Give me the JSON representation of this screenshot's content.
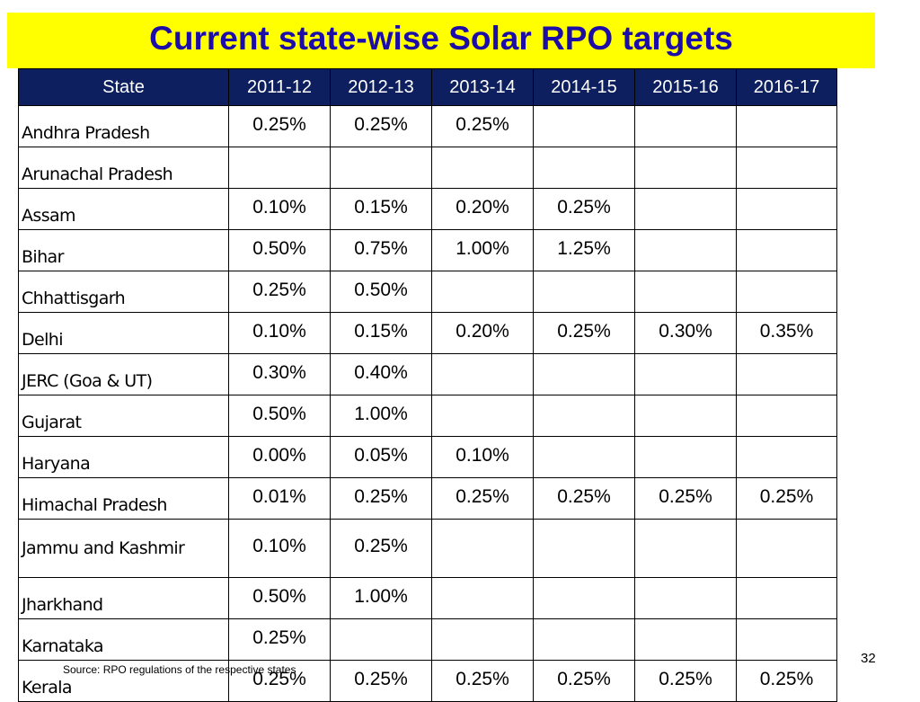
{
  "title": "Current state-wise Solar RPO targets",
  "table": {
    "headers": [
      "State",
      "2011-12",
      "2012-13",
      "2013-14",
      "2014-15",
      "2015-16",
      "2016-17"
    ],
    "rows": [
      {
        "state": "Andhra Pradesh",
        "values": [
          "0.25%",
          "0.25%",
          "0.25%",
          "",
          "",
          ""
        ]
      },
      {
        "state": "Arunachal Pradesh",
        "values": [
          "",
          "",
          "",
          "",
          "",
          ""
        ]
      },
      {
        "state": "Assam",
        "values": [
          "0.10%",
          "0.15%",
          "0.20%",
          "0.25%",
          "",
          ""
        ]
      },
      {
        "state": "Bihar",
        "values": [
          "0.50%",
          "0.75%",
          "1.00%",
          "1.25%",
          "",
          ""
        ]
      },
      {
        "state": "Chhattisgarh",
        "values": [
          "0.25%",
          "0.50%",
          "",
          "",
          "",
          ""
        ]
      },
      {
        "state": "Delhi",
        "values": [
          "0.10%",
          "0.15%",
          "0.20%",
          "0.25%",
          "0.30%",
          "0.35%"
        ]
      },
      {
        "state": "JERC (Goa & UT)",
        "values": [
          "0.30%",
          "0.40%",
          "",
          "",
          "",
          ""
        ]
      },
      {
        "state": "Gujarat",
        "values": [
          "0.50%",
          "1.00%",
          "",
          "",
          "",
          ""
        ]
      },
      {
        "state": "Haryana",
        "values": [
          "0.00%",
          "0.05%",
          "0.10%",
          "",
          "",
          ""
        ]
      },
      {
        "state": "Himachal Pradesh",
        "values": [
          "0.01%",
          "0.25%",
          "0.25%",
          "0.25%",
          "0.25%",
          "0.25%"
        ]
      },
      {
        "state": "Jammu and Kashmir",
        "values": [
          "0.10%",
          "0.25%",
          "",
          "",
          "",
          ""
        ]
      },
      {
        "state": "Jharkhand",
        "values": [
          "0.50%",
          "1.00%",
          "",
          "",
          "",
          ""
        ]
      },
      {
        "state": "Karnataka",
        "values": [
          "0.25%",
          "",
          "",
          "",
          "",
          ""
        ]
      },
      {
        "state": "Kerala",
        "values": [
          "0.25%",
          "0.25%",
          "0.25%",
          "0.25%",
          "0.25%",
          "0.25%"
        ]
      }
    ]
  },
  "page_number": "32",
  "source_note": "Source: RPO regulations of the respective states",
  "colors": {
    "title_background": "#ffff00",
    "title_text": "#1c0da8",
    "header_background": "#0d1f5e",
    "header_text": "#ffffff"
  }
}
